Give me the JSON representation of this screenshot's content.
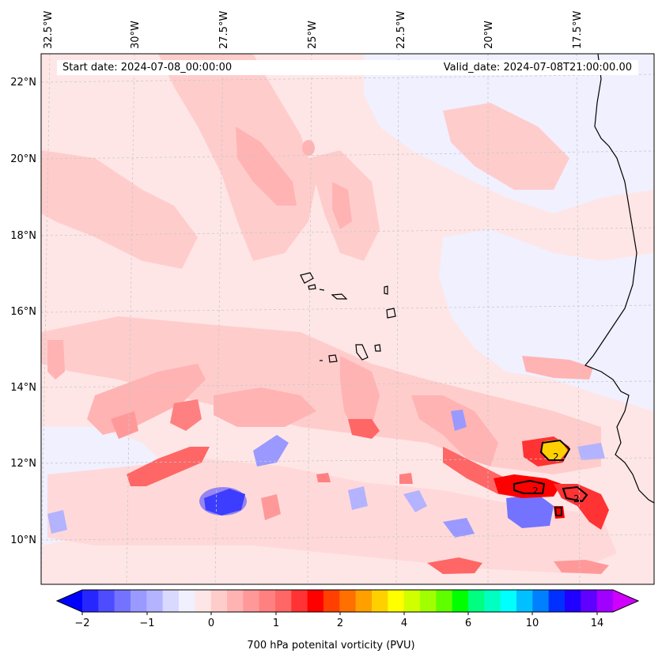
{
  "map": {
    "start_label": "Start date: 2024-07-08_00:00:00",
    "valid_label": "Valid_date: 2024-07-08T21:00:00.00",
    "longitude_labels": [
      "32.5°W",
      "30°W",
      "27.5°W",
      "25°W",
      "22.5°W",
      "20°W",
      "17.5°W"
    ],
    "latitude_labels": [
      "22°N",
      "20°N",
      "18°N",
      "16°N",
      "14°N",
      "12°N",
      "10°N"
    ],
    "contour_label": "2"
  },
  "colorbar": {
    "label": "700 hPa potenital vorticity (PVU)",
    "tick_labels": [
      "−2",
      "−1",
      "0",
      "1",
      "2",
      "4",
      "6",
      "10",
      "14"
    ],
    "colors": [
      "#0000ff",
      "#2626ff",
      "#4d4dff",
      "#7373ff",
      "#9999ff",
      "#b3b3ff",
      "#d9d9ff",
      "#f0f0ff",
      "#ffe6e6",
      "#ffcccc",
      "#ffb3b3",
      "#ff9999",
      "#ff8080",
      "#ff6666",
      "#ff3333",
      "#ff0000",
      "#ff4000",
      "#ff7000",
      "#ffa000",
      "#ffd000",
      "#ffff00",
      "#d0ff00",
      "#a0ff00",
      "#60ff00",
      "#00ff00",
      "#00ff80",
      "#00ffc0",
      "#00ffff",
      "#00c0ff",
      "#0080ff",
      "#0030ff",
      "#2000ff",
      "#6000ff",
      "#a000ff",
      "#d000ff"
    ]
  }
}
